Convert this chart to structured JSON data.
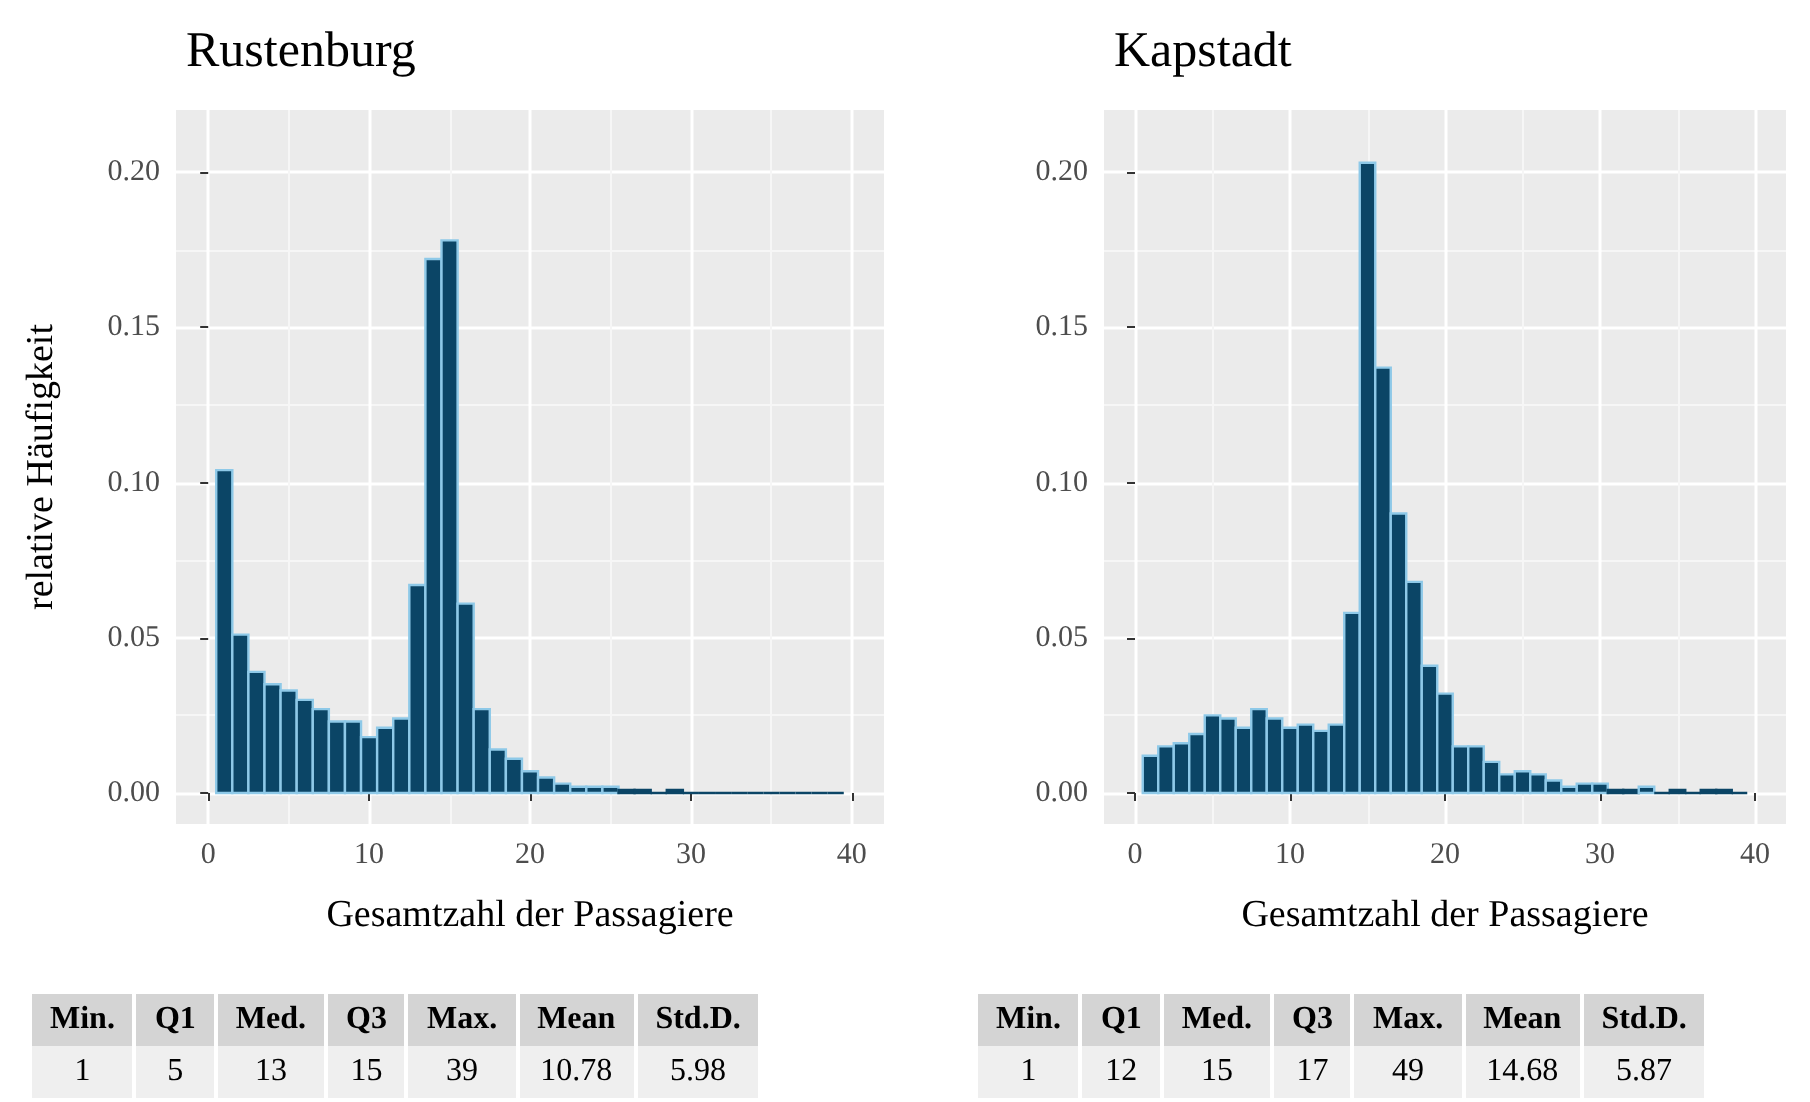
{
  "chart_data": [
    {
      "type": "histogram",
      "title": "Rustenburg",
      "xlabel": "Gesamtzahl der Passagiere",
      "ylabel": "relative Häufigkeit",
      "color": "#0b4566",
      "bins": [
        0.5,
        1.5,
        2.5,
        3.5,
        4.5,
        5.5,
        6.5,
        7.5,
        8.5,
        9.5,
        10.5,
        11.5,
        12.5,
        13.5,
        14.5,
        15.5,
        16.5,
        17.5,
        18.5,
        19.5,
        20.5,
        21.5,
        22.5,
        23.5,
        24.5,
        25.5,
        26.5,
        27.5,
        28.5,
        29.5,
        30.5,
        31.5,
        32.5,
        33.5,
        34.5,
        35.5,
        36.5,
        37.5,
        38.5,
        39.5
      ],
      "values": [
        0.104,
        0.051,
        0.039,
        0.035,
        0.033,
        0.03,
        0.027,
        0.023,
        0.023,
        0.018,
        0.021,
        0.024,
        0.067,
        0.172,
        0.178,
        0.061,
        0.027,
        0.014,
        0.011,
        0.007,
        0.005,
        0.003,
        0.002,
        0.002,
        0.002,
        0.001,
        0.001,
        0.0,
        0.001,
        0.0,
        0.0,
        0.0,
        0.0,
        0.0,
        0.0,
        0.0,
        0.0,
        0.0,
        0.0
      ],
      "xlim": [
        -2,
        42
      ],
      "ylim": [
        -0.01,
        0.22
      ],
      "xticks": [
        0,
        10,
        20,
        30,
        40
      ],
      "yticks": [
        {
          "value": 0,
          "label": "0.00"
        },
        {
          "value": 0.05,
          "label": "0.05"
        },
        {
          "value": 0.1,
          "label": "0.10"
        },
        {
          "value": 0.15,
          "label": "0.15"
        },
        {
          "value": 0.2,
          "label": "0.20"
        }
      ],
      "grid": true
    },
    {
      "type": "histogram",
      "title": "Kapstadt",
      "xlabel": "Gesamtzahl der Passagiere",
      "color": "#0b4566",
      "bins": [
        0.5,
        1.5,
        2.5,
        3.5,
        4.5,
        5.5,
        6.5,
        7.5,
        8.5,
        9.5,
        10.5,
        11.5,
        12.5,
        13.5,
        14.5,
        15.5,
        16.5,
        17.5,
        18.5,
        19.5,
        20.5,
        21.5,
        22.5,
        23.5,
        24.5,
        25.5,
        26.5,
        27.5,
        28.5,
        29.5,
        30.5,
        31.5,
        32.5,
        33.5,
        34.5,
        35.5,
        36.5,
        37.5,
        38.5,
        39.5
      ],
      "values": [
        0.012,
        0.015,
        0.016,
        0.019,
        0.025,
        0.024,
        0.021,
        0.027,
        0.024,
        0.021,
        0.022,
        0.02,
        0.022,
        0.058,
        0.203,
        0.137,
        0.09,
        0.068,
        0.041,
        0.032,
        0.015,
        0.015,
        0.01,
        0.006,
        0.007,
        0.006,
        0.004,
        0.002,
        0.003,
        0.003,
        0.001,
        0.001,
        0.002,
        0.0,
        0.001,
        0.0,
        0.001,
        0.001,
        0.0
      ],
      "xlim": [
        -2,
        42
      ],
      "ylim": [
        -0.01,
        0.22
      ],
      "xticks": [
        0,
        10,
        20,
        30,
        40
      ],
      "yticks": [
        {
          "value": 0,
          "label": "0.00"
        },
        {
          "value": 0.05,
          "label": "0.05"
        },
        {
          "value": 0.1,
          "label": "0.10"
        },
        {
          "value": 0.15,
          "label": "0.15"
        },
        {
          "value": 0.2,
          "label": "0.20"
        }
      ],
      "grid": true
    },
    {
      "type": "other",
      "categories": [
        "Min.",
        "Q1",
        "Med.",
        "Q3",
        "Max.",
        "Mean",
        "Std.D."
      ],
      "values": [
        1,
        5,
        13,
        15,
        39,
        10.78,
        5.98
      ],
      "data_labels": true
    },
    {
      "type": "other",
      "categories": [
        "Min.",
        "Q1",
        "Med.",
        "Q3",
        "Max.",
        "Mean",
        "Std.D."
      ],
      "values": [
        1,
        12,
        15,
        17,
        49,
        14.68,
        5.87
      ],
      "data_labels": true
    }
  ]
}
